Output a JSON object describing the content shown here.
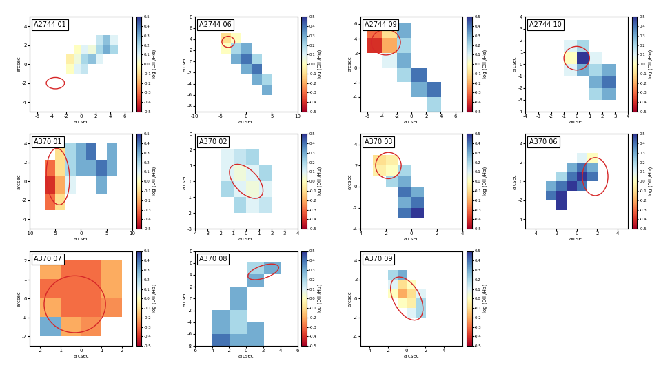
{
  "chart_data": [
    {
      "type": "heatmap",
      "title": "A2744 01",
      "xlabel": "arcsec",
      "ylabel": "arcsec",
      "xlim": [
        -7,
        7
      ],
      "xticks": [
        -6,
        -4,
        -2,
        0,
        2,
        4,
        6
      ],
      "ylim": [
        -5,
        5
      ],
      "yticks": [
        -4,
        -2,
        0,
        2,
        4
      ],
      "extent": [
        -2,
        5,
        -1,
        3
      ],
      "cells": [
        [
          null,
          null,
          null,
          null,
          0.15,
          0.25,
          0.1
        ],
        [
          null,
          0.0,
          0.1,
          0.05,
          0.2,
          0.3,
          0.2
        ],
        [
          -0.05,
          0.05,
          0.2,
          0.25,
          0.1,
          null,
          null
        ],
        [
          0.0,
          0.1,
          0.15,
          null,
          null,
          null,
          null
        ]
      ],
      "ellipse": {
        "x": -3.5,
        "y": -2,
        "width": 2.5,
        "height": 1.2,
        "angle": 0
      },
      "colorbar_label": "log (OII /Hα)",
      "color_range": [
        -0.5,
        0.5
      ],
      "color_ticks": [
        0.5,
        0.4,
        0.3,
        0.2,
        0.1,
        0.0,
        -0.1,
        -0.2,
        -0.3,
        -0.4,
        -0.5
      ]
    },
    {
      "type": "heatmap",
      "title": "A2744 06",
      "xlabel": "arcsec",
      "ylabel": "arcsec",
      "xlim": [
        -10,
        10
      ],
      "xticks": [
        -10,
        -5,
        0,
        5,
        10
      ],
      "ylim": [
        -9,
        8
      ],
      "yticks": [
        -8,
        -6,
        -4,
        -2,
        0,
        2,
        4,
        6,
        8
      ],
      "extent": [
        -5,
        5,
        -6,
        5
      ],
      "cells": [
        [
          -0.1,
          0.0,
          null,
          null,
          null
        ],
        [
          0.0,
          0.2,
          0.3,
          null,
          null
        ],
        [
          null,
          0.3,
          0.4,
          0.2,
          null
        ],
        [
          null,
          null,
          0.3,
          0.4,
          null
        ],
        [
          null,
          null,
          null,
          0.3,
          0.2
        ],
        [
          null,
          null,
          null,
          null,
          0.3
        ]
      ],
      "ellipse": {
        "x": -3.5,
        "y": 3.5,
        "width": 2.5,
        "height": 2,
        "angle": 0
      },
      "colorbar_label": "log (OII /Hα)",
      "color_range": [
        -0.5,
        0.5
      ],
      "color_ticks": [
        0.5,
        0.4,
        0.3,
        0.2,
        0.1,
        0.0,
        -0.1,
        -0.2,
        -0.3,
        -0.4,
        -0.5
      ]
    },
    {
      "type": "heatmap",
      "title": "A2744 09",
      "xlabel": "arcsec",
      "ylabel": "arcsec",
      "xlim": [
        -7,
        7
      ],
      "xticks": [
        -6,
        -4,
        -2,
        0,
        2,
        4,
        6
      ],
      "ylim": [
        -6,
        7
      ],
      "yticks": [
        -4,
        -2,
        0,
        2,
        4,
        6
      ],
      "extent": [
        -6,
        4,
        -6,
        6
      ],
      "cells": [
        [
          -0.3,
          -0.1,
          0.3,
          null,
          null
        ],
        [
          -0.4,
          -0.2,
          0.2,
          null,
          null
        ],
        [
          null,
          0.1,
          0.3,
          null,
          null
        ],
        [
          null,
          null,
          0.2,
          0.4,
          null
        ],
        [
          null,
          null,
          null,
          0.3,
          0.4
        ],
        [
          null,
          null,
          null,
          null,
          0.2
        ]
      ],
      "ellipse": {
        "x": -3.5,
        "y": 3.5,
        "width": 4,
        "height": 3.5,
        "angle": 0
      },
      "colorbar_label": "log (OII /Hα)",
      "color_range": [
        -0.5,
        0.5
      ],
      "color_ticks": [
        0.5,
        0.4,
        0.3,
        0.2,
        0.1,
        0.0,
        -0.1,
        -0.2,
        -0.3,
        -0.4,
        -0.5
      ]
    },
    {
      "type": "heatmap",
      "title": "A2744 10",
      "xlabel": "arcsec",
      "ylabel": "arcsec",
      "xlim": [
        -4,
        4
      ],
      "xticks": [
        -4,
        -3,
        -2,
        -1,
        0,
        1,
        2,
        3,
        4
      ],
      "ylim": [
        -4,
        4
      ],
      "yticks": [
        -4,
        -3,
        -2,
        -1,
        0,
        1,
        2,
        3,
        4
      ],
      "extent": [
        -1,
        3,
        -3,
        2
      ],
      "cells": [
        [
          0.1,
          0.2,
          null,
          null
        ],
        [
          0.0,
          0.5,
          0.1,
          null
        ],
        [
          0.1,
          0.3,
          0.2,
          0.3
        ],
        [
          null,
          null,
          0.3,
          0.4
        ],
        [
          null,
          null,
          0.2,
          0.3
        ]
      ],
      "ellipse": {
        "x": 0,
        "y": 0.5,
        "width": 2,
        "height": 2,
        "angle": 0
      },
      "colorbar_label": "log (OII /Hα)",
      "color_range": [
        -0.5,
        0.5
      ],
      "color_ticks": [
        0.5,
        0.4,
        0.3,
        0.2,
        0.1,
        0.0,
        -0.1,
        -0.2,
        -0.3,
        -0.4,
        -0.5
      ]
    },
    {
      "type": "heatmap",
      "title": "A370 01",
      "xlabel": "arcsec",
      "ylabel": "arcsec",
      "xlim": [
        -10,
        10
      ],
      "xticks": [
        -10,
        -5,
        0,
        5,
        10
      ],
      "ylim": [
        -5,
        5
      ],
      "yticks": [
        -4,
        -2,
        0,
        2,
        4
      ],
      "extent": [
        -7,
        7,
        -3,
        4
      ],
      "cells": [
        [
          null,
          -0.1,
          0.2,
          0.3,
          0.4,
          null,
          0.3
        ],
        [
          -0.3,
          -0.1,
          0.2,
          0.3,
          0.3,
          0.4,
          0.3
        ],
        [
          -0.4,
          -0.2,
          0.1,
          null,
          null,
          0.3,
          null
        ],
        [
          -0.3,
          -0.1,
          null,
          null,
          null,
          null,
          null
        ]
      ],
      "ellipse": {
        "x": -4.5,
        "y": 0.5,
        "width": 4.5,
        "height": 6,
        "angle": 10
      },
      "colorbar_label": "log (OII /Hα)",
      "color_range": [
        -0.5,
        0.5
      ],
      "color_ticks": [
        0.5,
        0.4,
        0.3,
        0.2,
        0.1,
        0.0,
        -0.1,
        -0.2,
        -0.3,
        -0.4,
        -0.5
      ]
    },
    {
      "type": "heatmap",
      "title": "A370 02",
      "xlabel": "arcsec",
      "ylabel": "arcsec",
      "xlim": [
        -4,
        4
      ],
      "xticks": [
        -4,
        -3,
        -2,
        -1,
        0,
        1,
        2,
        3,
        4
      ],
      "ylim": [
        -3,
        3
      ],
      "yticks": [
        -3,
        -2,
        -1,
        0,
        1,
        2,
        3
      ],
      "extent": [
        -2,
        2,
        -2,
        2
      ],
      "cells": [
        [
          0.1,
          0.15,
          0.2,
          null
        ],
        [
          0.1,
          0.05,
          0.1,
          0.2
        ],
        [
          0.2,
          0.1,
          0.05,
          0.1
        ],
        [
          null,
          0.2,
          0.1,
          0.15
        ]
      ],
      "ellipse": {
        "x": 0,
        "y": 0,
        "width": 3,
        "height": 1.6,
        "angle": -35
      },
      "colorbar_label": "log (OII /Hα)",
      "color_range": [
        -0.5,
        0.5
      ],
      "color_ticks": [
        0.5,
        0.4,
        0.3,
        0.2,
        0.1,
        0.0,
        -0.1,
        -0.2,
        -0.3,
        -0.4,
        -0.5
      ]
    },
    {
      "type": "heatmap",
      "title": "A370 03",
      "xlabel": "arcsec",
      "ylabel": "arcsec",
      "xlim": [
        -4,
        4
      ],
      "xticks": [
        -4,
        -2,
        0,
        2,
        4
      ],
      "ylim": [
        -4,
        5
      ],
      "yticks": [
        -4,
        -2,
        0,
        2,
        4
      ],
      "extent": [
        -3,
        2,
        -3,
        3
      ],
      "cells": [
        [
          -0.1,
          -0.05,
          null,
          null,
          null
        ],
        [
          -0.05,
          0.0,
          0.2,
          null,
          null
        ],
        [
          null,
          0.2,
          0.3,
          null,
          null
        ],
        [
          null,
          null,
          0.4,
          0.3,
          null
        ],
        [
          null,
          null,
          0.3,
          0.4,
          null
        ],
        [
          null,
          null,
          0.4,
          0.5,
          null
        ]
      ],
      "ellipse": {
        "x": -1.8,
        "y": 2,
        "width": 2,
        "height": 2.5,
        "angle": 0
      },
      "colorbar_label": "log (OII /Hα)",
      "color_range": [
        -0.5,
        0.5
      ],
      "color_ticks": [
        0.5,
        0.4,
        0.3,
        0.2,
        0.1,
        0.0,
        -0.1,
        -0.2,
        -0.3,
        -0.4,
        -0.5
      ]
    },
    {
      "type": "heatmap",
      "title": "A370 06",
      "xlabel": "arcsec",
      "ylabel": "arcsec",
      "xlim": [
        -5,
        5
      ],
      "xticks": [
        -4,
        -2,
        0,
        2,
        4
      ],
      "ylim": [
        -5,
        5
      ],
      "yticks": [
        -4,
        -2,
        0,
        2,
        4
      ],
      "extent": [
        -3,
        3,
        -3,
        3
      ],
      "cells": [
        [
          null,
          null,
          null,
          0.1,
          0.0,
          null
        ],
        [
          null,
          null,
          0.3,
          0.4,
          0.3,
          null
        ],
        [
          null,
          0.2,
          0.4,
          0.5,
          0.4,
          null
        ],
        [
          0.3,
          0.4,
          0.5,
          0.4,
          null,
          null
        ],
        [
          0.4,
          0.5,
          null,
          null,
          null,
          null
        ],
        [
          null,
          0.5,
          null,
          null,
          null,
          null
        ]
      ],
      "ellipse": {
        "x": 1.8,
        "y": 0.5,
        "width": 2.5,
        "height": 4,
        "angle": 0
      },
      "colorbar_label": "log (OII /Hα)",
      "color_range": [
        -0.5,
        0.5
      ],
      "color_ticks": [
        0.5,
        0.4,
        0.3,
        0.2,
        0.1,
        0.0,
        -0.1,
        -0.2,
        -0.3,
        -0.4,
        -0.5
      ]
    },
    {
      "type": "heatmap",
      "title": "A370 07",
      "xlabel": "arcsec",
      "ylabel": "arcsec",
      "xlim": [
        -2.5,
        2.5
      ],
      "xticks": [
        -2,
        -1,
        0,
        1,
        2
      ],
      "ylim": [
        -2.5,
        2.5
      ],
      "yticks": [
        -2,
        -1,
        0,
        1,
        2
      ],
      "extent": [
        -2,
        2,
        -2,
        2
      ],
      "cells": [
        [
          -0.2,
          -0.3,
          -0.3,
          -0.2
        ],
        [
          -0.3,
          -0.3,
          -0.3,
          -0.2
        ],
        [
          -0.2,
          -0.3,
          -0.3,
          -0.25
        ],
        [
          0.3,
          -0.2,
          -0.25,
          null
        ]
      ],
      "ellipse": {
        "x": -0.3,
        "y": -0.3,
        "width": 3,
        "height": 3,
        "angle": 0
      },
      "colorbar_label": "log (OII /Hα)",
      "color_range": [
        -0.5,
        0.5
      ],
      "color_ticks": [
        0.5,
        0.4,
        0.3,
        0.2,
        0.1,
        0.0,
        -0.1,
        -0.2,
        -0.3,
        -0.4,
        -0.5
      ]
    },
    {
      "type": "heatmap",
      "title": "A370 08",
      "xlabel": "arcsec",
      "ylabel": "arcsec",
      "xlim": [
        -6,
        6
      ],
      "xticks": [
        -6,
        -4,
        -2,
        0,
        2,
        4,
        6
      ],
      "ylim": [
        -8,
        8
      ],
      "yticks": [
        -8,
        -6,
        -4,
        -2,
        0,
        2,
        4,
        6,
        8
      ],
      "extent": [
        -4,
        4,
        -8,
        6
      ],
      "cells": [
        [
          null,
          null,
          0.2,
          0.3
        ],
        [
          null,
          null,
          0.3,
          null
        ],
        [
          null,
          0.3,
          null,
          null
        ],
        [
          null,
          0.3,
          null,
          null
        ],
        [
          0.3,
          0.2,
          null,
          null
        ],
        [
          0.3,
          0.2,
          0.3,
          null
        ],
        [
          0.4,
          0.3,
          0.3,
          null
        ]
      ],
      "ellipse": {
        "x": 2,
        "y": 4.5,
        "width": 4,
        "height": 2,
        "angle": 30
      },
      "colorbar_label": "log (OII /Hα)",
      "color_range": [
        -0.5,
        0.5
      ],
      "color_ticks": [
        0.5,
        0.4,
        0.3,
        0.2,
        0.1,
        0.0,
        -0.1,
        -0.2,
        -0.3,
        -0.4,
        -0.5
      ]
    },
    {
      "type": "heatmap",
      "title": "A370 09",
      "xlabel": "arcsec",
      "ylabel": "arcsec",
      "xlim": [
        -5,
        6
      ],
      "xticks": [
        -4,
        -2,
        0,
        2,
        4
      ],
      "ylim": [
        -5,
        5
      ],
      "yticks": [
        -4,
        -2,
        0,
        2,
        4
      ],
      "extent": [
        -2,
        2,
        -2,
        3
      ],
      "cells": [
        [
          0.2,
          0.3,
          null,
          null
        ],
        [
          0.1,
          -0.1,
          0.0,
          null
        ],
        [
          0.0,
          -0.2,
          -0.1,
          0.1
        ],
        [
          null,
          0.0,
          -0.05,
          0.2
        ],
        [
          null,
          null,
          0.1,
          0.2
        ]
      ],
      "ellipse": {
        "x": 0,
        "y": 0,
        "width": 2.8,
        "height": 5,
        "angle": 30
      },
      "colorbar_label": "log (OII /Hα)",
      "color_range": [
        -0.5,
        0.5
      ],
      "color_ticks": [
        0.5,
        0.4,
        0.3,
        0.2,
        0.1,
        0.0,
        -0.1,
        -0.2,
        -0.3,
        -0.4,
        -0.5
      ]
    }
  ]
}
